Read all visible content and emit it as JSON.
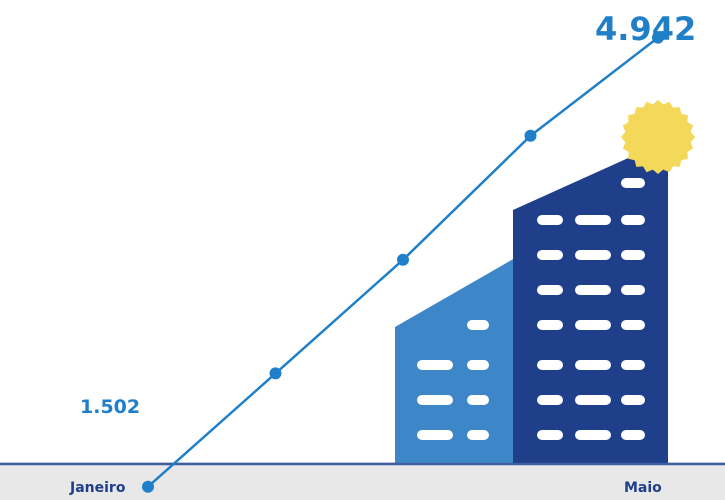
{
  "chart_data": {
    "type": "line",
    "title": "",
    "xlabel": "",
    "ylabel": "",
    "categories": [
      "Janeiro",
      "",
      "",
      "",
      "Maio"
    ],
    "series": [
      {
        "values": [
          1502,
          2370,
          3240,
          4190,
          4942
        ]
      }
    ],
    "ylim": [
      1400,
      5000
    ],
    "grid": false,
    "legend": "none",
    "data_labels": {
      "first": "1.502",
      "last": "4.942"
    }
  },
  "colors": {
    "line": "#1f7fc8",
    "label": "#1f7fc8",
    "building_back": "#3d86c8",
    "building_front": "#1f3f8a",
    "window": "#ffffff",
    "sun": "#f4d85a",
    "baseline": "#3f5da3",
    "footer_band": "#e8e8e8",
    "axis_text": "#1f3f8a"
  },
  "illustration": {
    "icons": [
      "office-building-icon",
      "sun-icon"
    ]
  }
}
